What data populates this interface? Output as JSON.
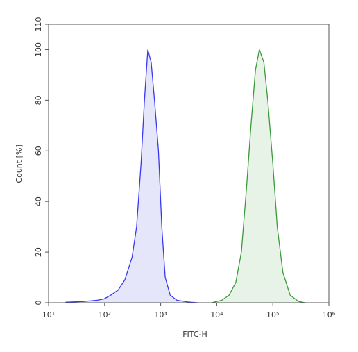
{
  "chart_data": {
    "type": "area",
    "xlabel": "FITC-H",
    "ylabel": "Count [%]",
    "xscale": "log",
    "xlim": [
      10,
      1000000
    ],
    "ylim": [
      0,
      110
    ],
    "xticks": [
      {
        "value": 10,
        "label": "10¹"
      },
      {
        "value": 100,
        "label": "10²"
      },
      {
        "value": 1000,
        "label": "10³"
      },
      {
        "value": 10000,
        "label": "10⁴"
      },
      {
        "value": 100000,
        "label": "10⁵"
      },
      {
        "value": 1000000,
        "label": "10⁶"
      }
    ],
    "yticks": [
      0,
      20,
      40,
      60,
      80,
      100,
      110
    ],
    "series": [
      {
        "color": "#3838f0",
        "fill": "#e6e6fb",
        "x": [
          20,
          42,
          74,
          98,
          129,
          174,
          229,
          309,
          372,
          447,
          513,
          589,
          676,
          776,
          912,
          1047,
          1202,
          1479,
          1950,
          3020,
          4570
        ],
        "values": [
          0.2,
          0.5,
          1,
          1.5,
          3,
          5,
          9,
          18,
          30,
          55,
          80,
          100,
          95,
          80,
          60,
          30,
          10,
          3,
          1,
          0.3,
          0
        ]
      },
      {
        "color": "#3a9a3a",
        "fill": "#e8f3e8",
        "x": [
          8130,
          12300,
          16600,
          21900,
          27500,
          33900,
          40700,
          49000,
          57500,
          69200,
          81300,
          100000,
          120000,
          151000,
          204000,
          288000,
          380000
        ],
        "values": [
          0,
          1,
          3,
          8,
          20,
          45,
          70,
          92,
          100,
          95,
          80,
          55,
          30,
          12,
          3,
          0.5,
          0
        ]
      }
    ]
  }
}
